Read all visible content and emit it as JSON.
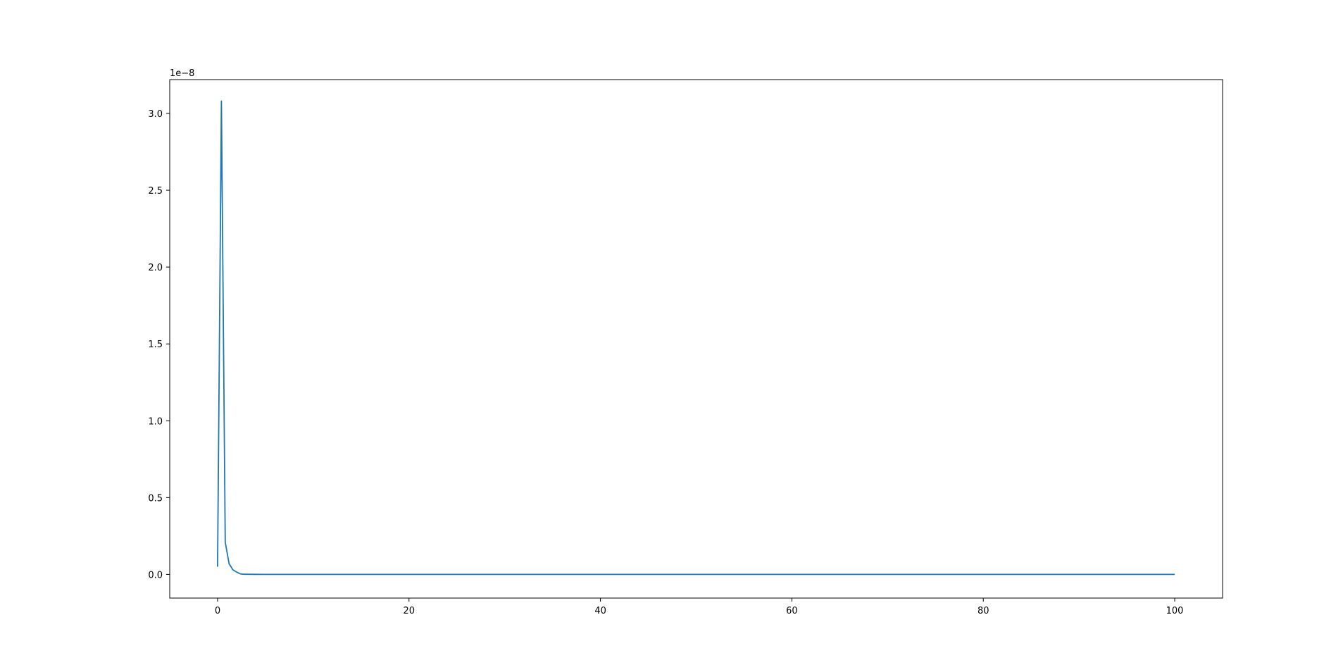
{
  "chart_data": {
    "type": "line",
    "title": "",
    "xlabel": "",
    "ylabel": "",
    "y_offset_label": "1e−8",
    "xlim": [
      -5,
      105
    ],
    "ylim": [
      -0.154,
      3.22
    ],
    "x_ticks": [
      0,
      20,
      40,
      60,
      80,
      100
    ],
    "x_tick_labels": [
      "0",
      "20",
      "40",
      "60",
      "80",
      "100"
    ],
    "y_ticks": [
      0.0,
      0.5,
      1.0,
      1.5,
      2.0,
      2.5,
      3.0
    ],
    "y_tick_labels": [
      "0.0",
      "0.5",
      "1.0",
      "1.5",
      "2.0",
      "2.5",
      "3.0"
    ],
    "y_units_multiplier": 1e-08,
    "grid": false,
    "legend": "none",
    "series": [
      {
        "color": "#1f77b4",
        "x": [
          0.0,
          0.4,
          0.8,
          1.2,
          1.6,
          2.0,
          2.4,
          2.8,
          3.2,
          4.0,
          5.0,
          7.0,
          10.0,
          20.0,
          30.0,
          40.0,
          50.0,
          60.0,
          70.0,
          80.0,
          90.0,
          100.0
        ],
        "y": [
          0.05,
          3.08,
          0.21,
          0.07,
          0.03,
          0.015,
          0.003,
          0.001,
          0.001,
          0.0005,
          0.0003,
          0.0002,
          0.0001,
          0.0,
          0.0,
          0.0,
          0.0,
          0.0,
          0.0,
          0.0,
          0.0,
          0.0
        ]
      }
    ]
  }
}
